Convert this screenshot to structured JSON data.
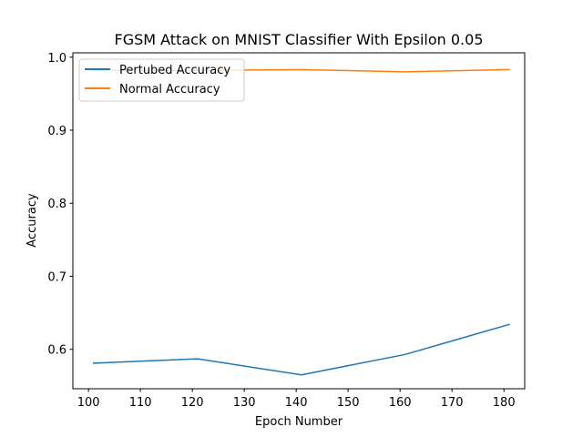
{
  "chart_data": {
    "type": "line",
    "title": "FGSM Attack on MNIST Classifier With Epsilon 0.05",
    "xlabel": "Epoch Number",
    "ylabel": "Accuracy",
    "xlim": [
      97,
      184
    ],
    "ylim": [
      0.546,
      1.006
    ],
    "xticks": [
      100,
      110,
      120,
      130,
      140,
      150,
      160,
      170,
      180
    ],
    "yticks": [
      0.6,
      0.7,
      0.8,
      0.9,
      1.0
    ],
    "ytick_labels": [
      "0.6",
      "0.7",
      "0.8",
      "0.9",
      "1.0"
    ],
    "x": [
      101,
      121,
      141,
      161,
      181
    ],
    "series": [
      {
        "name": "Pertubed Accuracy",
        "color": "#1f77b4",
        "values": [
          0.581,
          0.587,
          0.565,
          0.593,
          0.634
        ]
      },
      {
        "name": "Normal Accuracy",
        "color": "#ff7f0e",
        "values": [
          0.982,
          0.982,
          0.983,
          0.98,
          0.983
        ]
      }
    ],
    "grid": false,
    "legend_position": "top-left"
  }
}
